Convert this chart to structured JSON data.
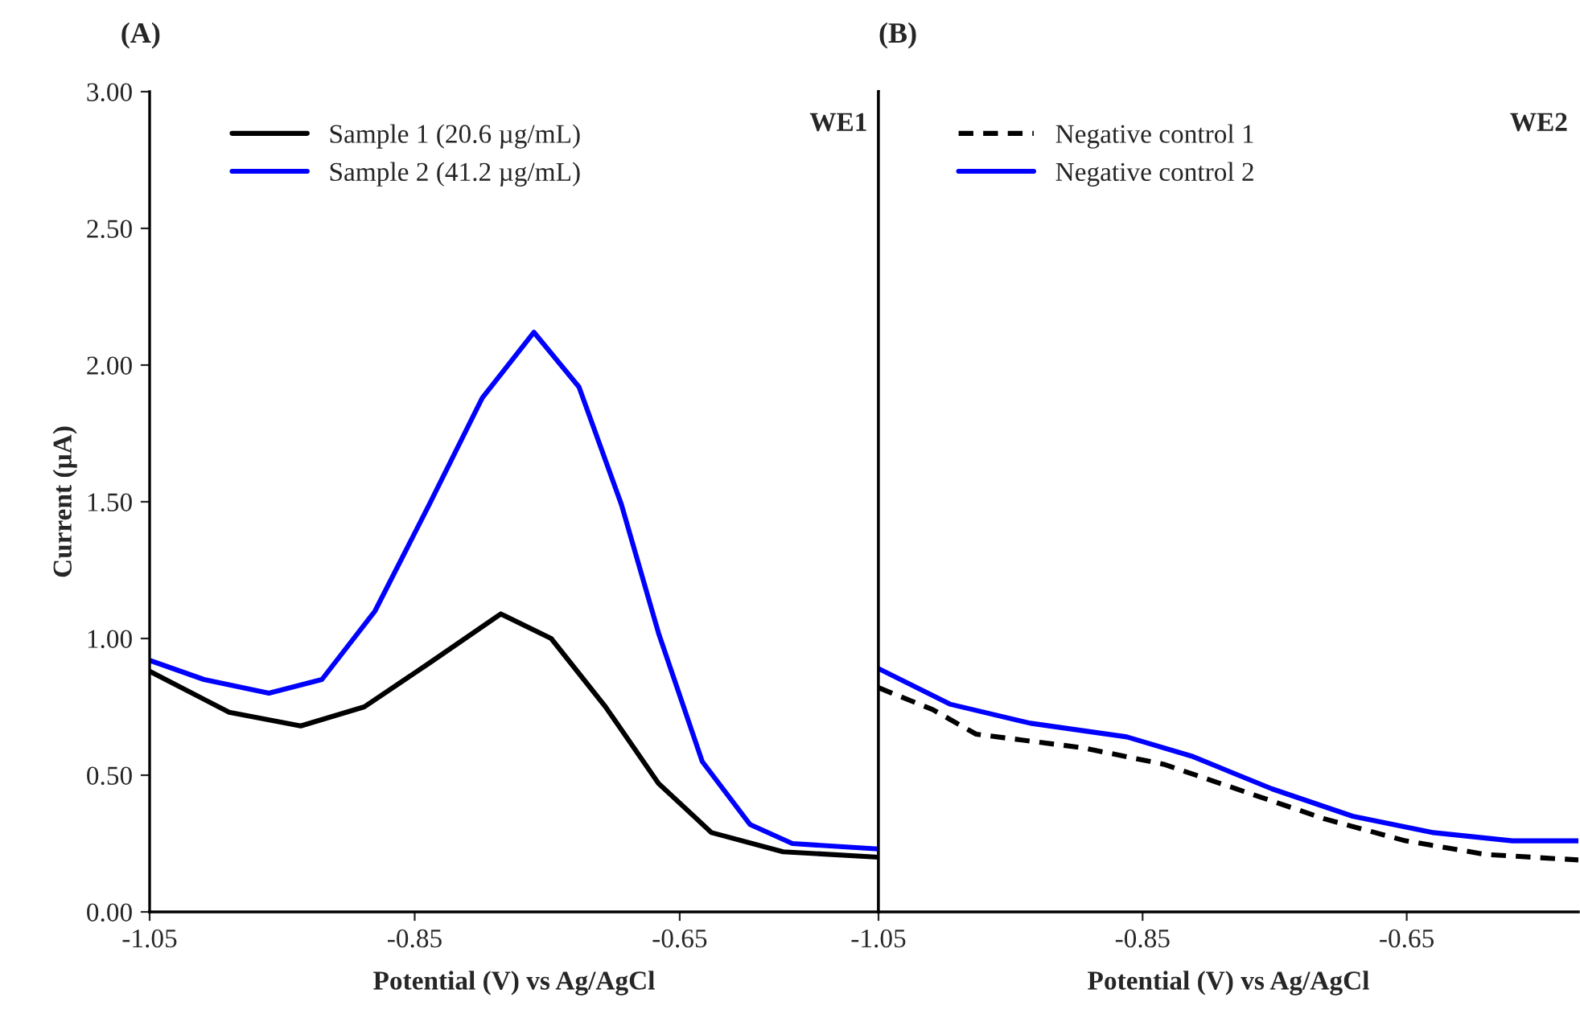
{
  "chart_data": [
    {
      "type": "line",
      "title": "(A)",
      "xlabel": "Potential (V) vs Ag/AgCl",
      "ylabel": "Current (µA)",
      "annotations": [
        "WE1"
      ],
      "xlim": [
        -1.05,
        -0.5
      ],
      "xticks": [
        -1.05,
        -0.85,
        -0.65
      ],
      "ylim": [
        0,
        3
      ],
      "yticks": [
        {
          "value": 0,
          "label": "0.00"
        },
        {
          "value": 0.5,
          "label": "0.50"
        },
        {
          "value": 1,
          "label": "1.00"
        },
        {
          "value": 1.5,
          "label": "1.50"
        },
        {
          "value": 2,
          "label": "2.00"
        },
        {
          "value": 2.5,
          "label": "2.50"
        },
        {
          "value": 3,
          "label": "3.00"
        }
      ],
      "grid": false,
      "legend": "top left",
      "marker": "none",
      "series": [
        {
          "name": "Sample 1 (20.6 µg/mL)",
          "color": "#000000",
          "line_style": "solid",
          "x": [
            -1.05,
            -0.99,
            -0.936,
            -0.888,
            -0.839,
            -0.785,
            -0.747,
            -0.706,
            -0.666,
            -0.626,
            -0.572,
            -0.5
          ],
          "values": [
            0.88,
            0.73,
            0.68,
            0.75,
            0.91,
            1.09,
            1.0,
            0.75,
            0.47,
            0.29,
            0.22,
            0.2
          ]
        },
        {
          "name": "Sample 2 (41.2 µg/mL)",
          "color": "#0000ff",
          "line_style": "solid",
          "x": [
            -1.05,
            -1.009,
            -0.96,
            -0.92,
            -0.88,
            -0.839,
            -0.799,
            -0.76,
            -0.726,
            -0.694,
            -0.666,
            -0.633,
            -0.597,
            -0.565,
            -0.5
          ],
          "values": [
            0.92,
            0.85,
            0.8,
            0.85,
            1.1,
            1.49,
            1.88,
            2.12,
            1.92,
            1.49,
            1.02,
            0.55,
            0.32,
            0.25,
            0.23
          ]
        }
      ]
    },
    {
      "type": "line",
      "title": "(B)",
      "xlabel": "Potential (V) vs Ag/AgCl",
      "annotations": [
        "WE2"
      ],
      "xlim": [
        -1.05,
        -0.52
      ],
      "xticks": [
        -1.05,
        -0.85,
        -0.65
      ],
      "ylim": [
        0,
        3
      ],
      "tick_labels": "x",
      "grid": false,
      "legend": "top left",
      "marker": "none",
      "series": [
        {
          "name": "Negative control 1",
          "color": "#000000",
          "line_style": "dashed",
          "x": [
            -1.05,
            -1.009,
            -0.976,
            -0.895,
            -0.834,
            -0.773,
            -0.712,
            -0.651,
            -0.59,
            -0.52
          ],
          "values": [
            0.82,
            0.74,
            0.65,
            0.6,
            0.54,
            0.44,
            0.34,
            0.26,
            0.21,
            0.19
          ]
        },
        {
          "name": "Negative control 2",
          "color": "#0000ff",
          "line_style": "solid",
          "x": [
            -1.05,
            -0.996,
            -0.935,
            -0.862,
            -0.813,
            -0.752,
            -0.691,
            -0.63,
            -0.57,
            -0.52
          ],
          "values": [
            0.89,
            0.76,
            0.69,
            0.64,
            0.57,
            0.45,
            0.35,
            0.29,
            0.26,
            0.26
          ]
        }
      ]
    }
  ]
}
